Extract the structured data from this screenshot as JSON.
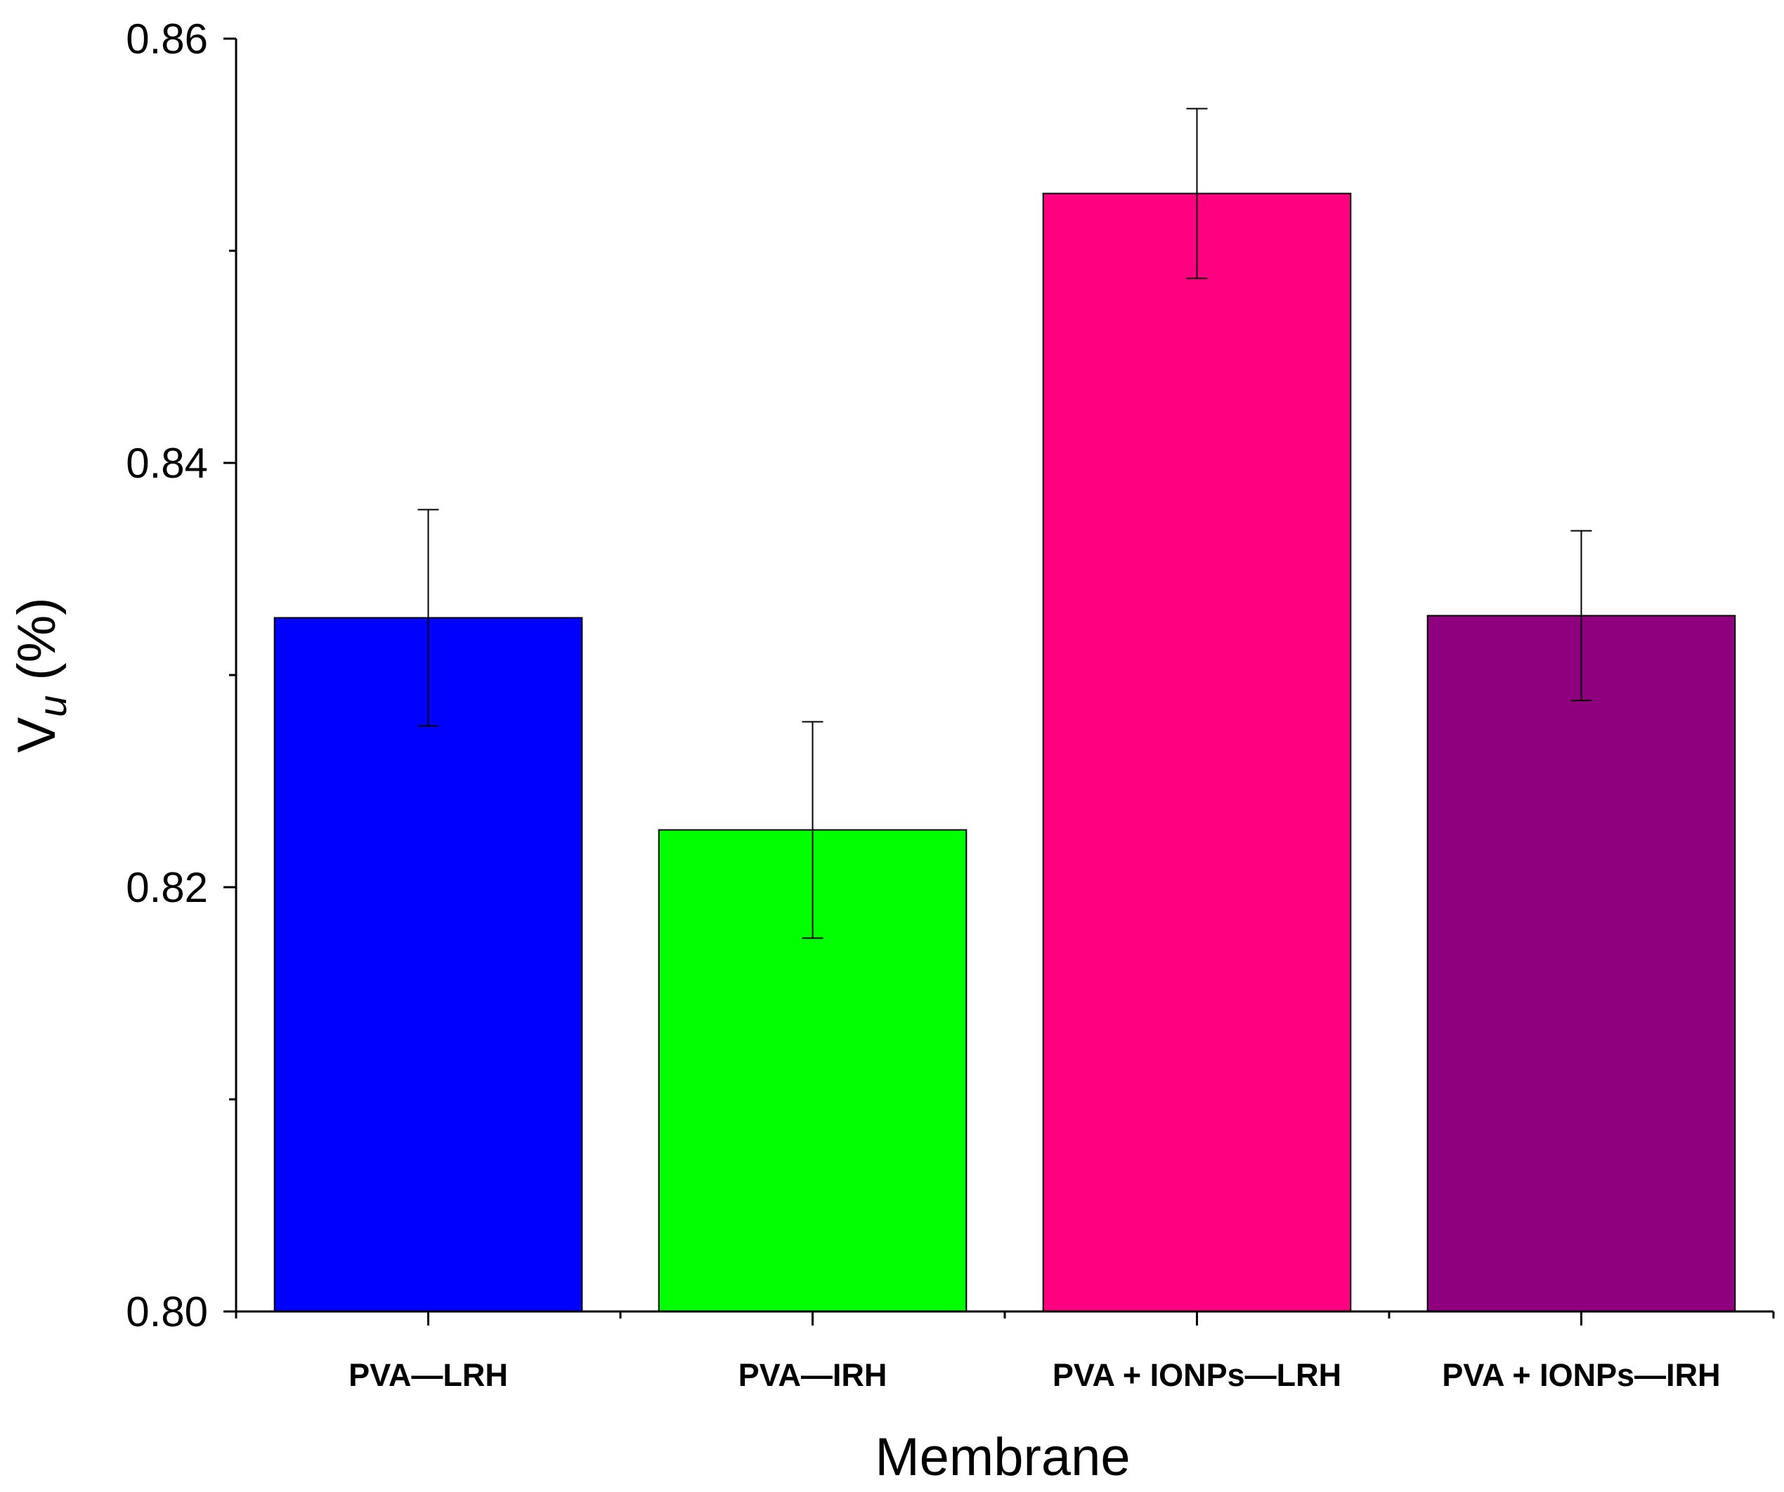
{
  "chart_data": {
    "type": "bar",
    "title": "",
    "xlabel": "Membrane",
    "ylabel": {
      "main": "V",
      "subscript": "u",
      "suffix": " (%)"
    },
    "categories": [
      "PVA—LRH",
      "PVA—IRH",
      "PVA + IONPs—LRH",
      "PVA + IONPs—IRH"
    ],
    "values": [
      0.8327,
      0.8227,
      0.8527,
      0.8328
    ],
    "errors": [
      0.0051,
      0.0051,
      0.004,
      0.004
    ],
    "colors": [
      "#0000ff",
      "#00ff00",
      "#ff0080",
      "#8f007f"
    ],
    "ylim": [
      0.8,
      0.86
    ],
    "major_ticks": [
      0.8,
      0.82,
      0.84,
      0.86
    ],
    "major_tick_labels": [
      "0.80",
      "0.82",
      "0.84",
      "0.86"
    ],
    "minor_ticks": [
      0.81,
      0.83,
      0.85
    ],
    "grid": false,
    "legend": "none"
  }
}
